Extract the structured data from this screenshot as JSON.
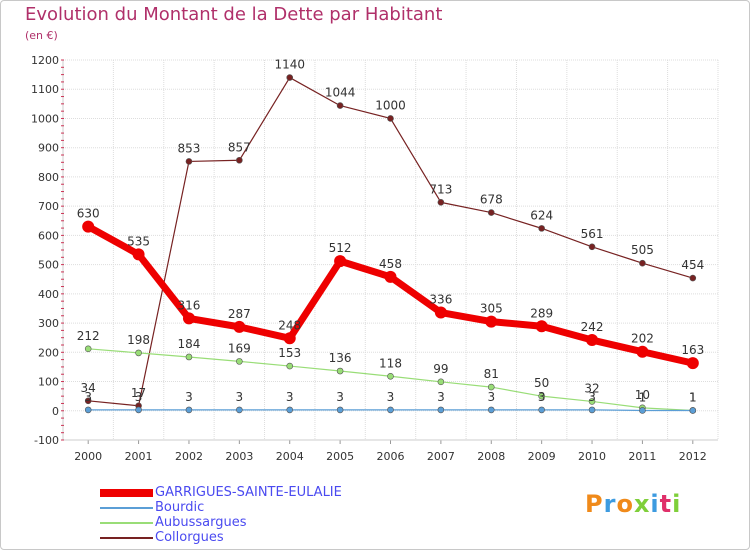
{
  "header": {
    "title": "Evolution du Montant de la Dette par Habitant",
    "subtitle": "(en €)"
  },
  "logo": {
    "text": "Proxiti"
  },
  "chart_data": {
    "type": "line",
    "title": "Evolution du Montant de la Dette par Habitant",
    "ylabel": "(en €)",
    "xlabel": "",
    "x": [
      "2000",
      "2001",
      "2002",
      "2003",
      "2004",
      "2005",
      "2006",
      "2007",
      "2008",
      "2009",
      "2010",
      "2011",
      "2012"
    ],
    "ylim": [
      -100,
      1200
    ],
    "yticks": [
      -100,
      0,
      100,
      200,
      300,
      400,
      500,
      600,
      700,
      800,
      900,
      1000,
      1100,
      1200
    ],
    "grid": true,
    "legend_position": "bottom-left",
    "series": [
      {
        "name": "GARRIGUES-SAINTE-EULALIE",
        "color": "#ee0000",
        "values": [
          630,
          535,
          316,
          287,
          248,
          512,
          458,
          336,
          305,
          289,
          242,
          202,
          163
        ]
      },
      {
        "name": "Bourdic",
        "color": "#5b9ed6",
        "values": [
          3,
          3,
          3,
          3,
          3,
          3,
          3,
          3,
          3,
          3,
          3,
          1,
          1
        ]
      },
      {
        "name": "Aubussargues",
        "color": "#99dd77",
        "values": [
          212,
          198,
          184,
          169,
          153,
          136,
          118,
          99,
          81,
          50,
          32,
          10,
          1
        ]
      },
      {
        "name": "Collorgues",
        "color": "#772222",
        "values": [
          34,
          17,
          853,
          857,
          1140,
          1044,
          1000,
          713,
          678,
          624,
          561,
          505,
          454
        ]
      }
    ]
  }
}
